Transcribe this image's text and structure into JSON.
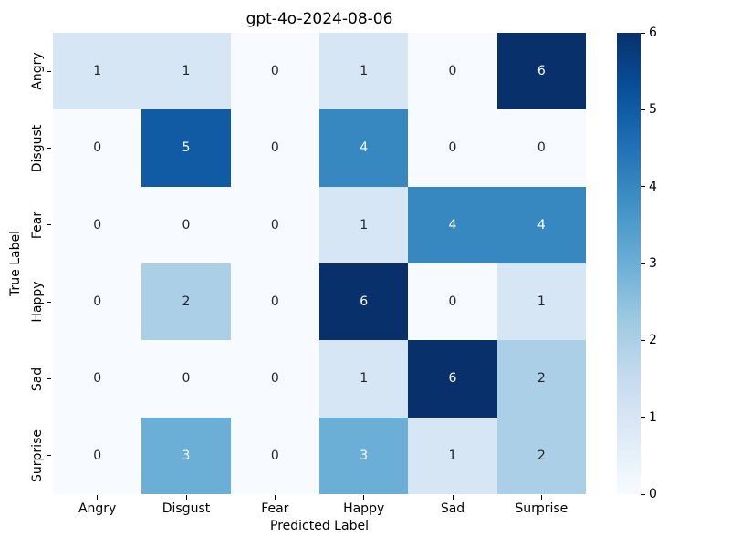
{
  "chart_data": {
    "type": "heatmap",
    "title": "gpt-4o-2024-08-06",
    "xlabel": "Predicted Label",
    "ylabel": "True Label",
    "categories": [
      "Angry",
      "Disgust",
      "Fear",
      "Happy",
      "Sad",
      "Surprise"
    ],
    "matrix": [
      [
        1,
        1,
        0,
        1,
        0,
        6
      ],
      [
        0,
        5,
        0,
        4,
        0,
        0
      ],
      [
        0,
        0,
        0,
        1,
        4,
        4
      ],
      [
        0,
        2,
        0,
        6,
        0,
        1
      ],
      [
        0,
        0,
        0,
        1,
        6,
        2
      ],
      [
        0,
        3,
        0,
        3,
        1,
        2
      ]
    ],
    "vmin": 0,
    "vmax": 6,
    "colorbar_ticks": [
      0,
      1,
      2,
      3,
      4,
      5,
      6
    ],
    "colormap_name": "Blues",
    "colormap_stops_light_to_dark": [
      "#f7fbff",
      "#deebf7",
      "#c6dbef",
      "#9ecae1",
      "#6baed6",
      "#4292c6",
      "#2171b5",
      "#08519c",
      "#08306b"
    ],
    "value_colors": {
      "0": "#f7fbff",
      "1": "#d6e6f4",
      "2": "#abcfe6",
      "3": "#6baed6",
      "4": "#3787c0",
      "5": "#105ba4",
      "6": "#08306b"
    },
    "annotation_dark_color": "#262626",
    "annotation_light_color": "#ffffff",
    "annotation_light_threshold": 3,
    "legend_position": "right-colorbar",
    "grid": false,
    "background_color": "#ffffff"
  }
}
